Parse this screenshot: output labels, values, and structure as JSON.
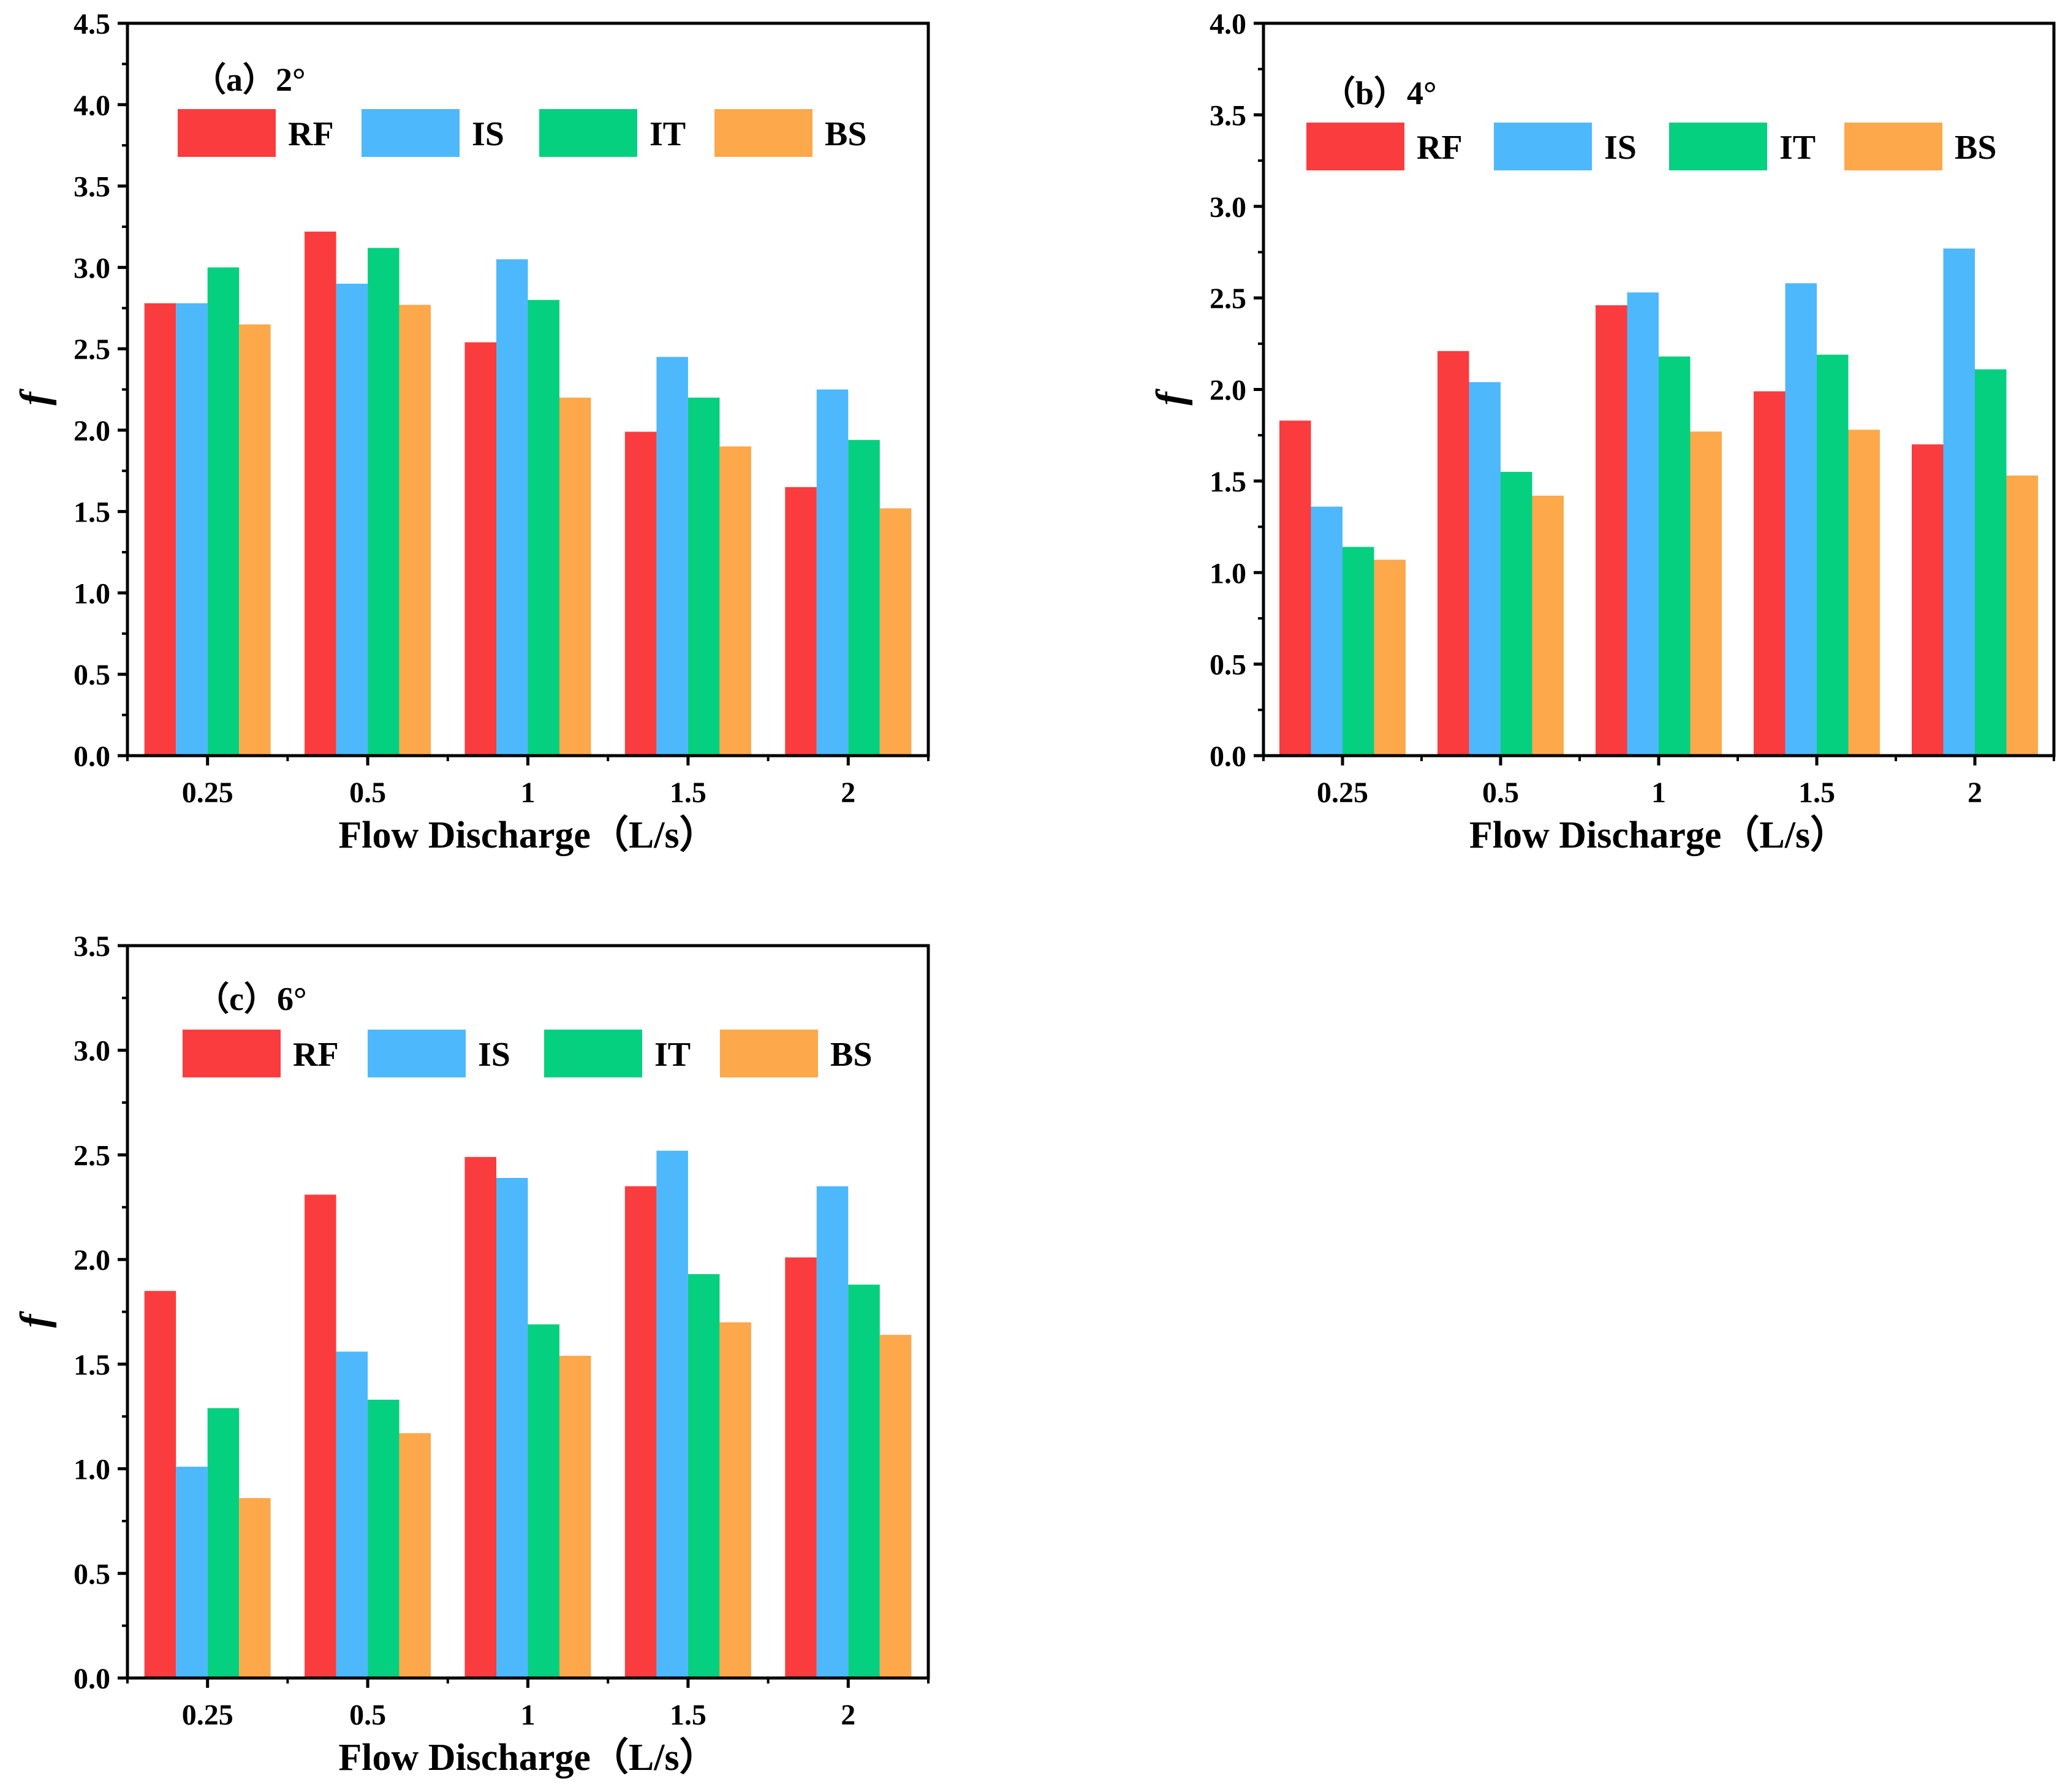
{
  "colors": {
    "RF": "#fa3c3e",
    "IS": "#4db8fc",
    "IT": "#05d07f",
    "BS": "#fca84b",
    "axis": "#000000"
  },
  "chart_data": [
    {
      "type": "bar",
      "title": "（a）2°",
      "xlabel": "Flow Discharge（L/s）",
      "ylabel": "f",
      "ylim": [
        0,
        4.5
      ],
      "yticks": [
        "0.0",
        "0.5",
        "1.0",
        "1.5",
        "2.0",
        "2.5",
        "3.0",
        "3.5",
        "4.0",
        "4.5"
      ],
      "categories": [
        "0.25",
        "0.5",
        "1",
        "1.5",
        "2"
      ],
      "legend_position": "top",
      "grid": false,
      "series": [
        {
          "name": "RF",
          "values": [
            2.78,
            3.22,
            2.54,
            1.99,
            1.65
          ]
        },
        {
          "name": "IS",
          "values": [
            2.78,
            2.9,
            3.05,
            2.45,
            2.25
          ]
        },
        {
          "name": "IT",
          "values": [
            3.0,
            3.12,
            2.8,
            2.2,
            1.94
          ]
        },
        {
          "name": "BS",
          "values": [
            2.65,
            2.77,
            2.2,
            1.9,
            1.52
          ]
        }
      ]
    },
    {
      "type": "bar",
      "title": "（b）4°",
      "xlabel": "Flow Discharge（L/s）",
      "ylabel": "f",
      "ylim": [
        0,
        4.0
      ],
      "yticks": [
        "0.0",
        "0.5",
        "1.0",
        "1.5",
        "2.0",
        "2.5",
        "3.0",
        "3.5",
        "4.0"
      ],
      "categories": [
        "0.25",
        "0.5",
        "1",
        "1.5",
        "2"
      ],
      "legend_position": "top",
      "grid": false,
      "series": [
        {
          "name": "RF",
          "values": [
            1.83,
            2.21,
            2.46,
            1.99,
            1.7
          ]
        },
        {
          "name": "IS",
          "values": [
            1.36,
            2.04,
            2.53,
            2.58,
            2.77
          ]
        },
        {
          "name": "IT",
          "values": [
            1.14,
            1.55,
            2.18,
            2.19,
            2.11
          ]
        },
        {
          "name": "BS",
          "values": [
            1.07,
            1.42,
            1.77,
            1.78,
            1.53
          ]
        }
      ]
    },
    {
      "type": "bar",
      "title": "（c）6°",
      "xlabel": "Flow Discharge（L/s）",
      "ylabel": "f",
      "ylim": [
        0,
        3.5
      ],
      "yticks": [
        "0.0",
        "0.5",
        "1.0",
        "1.5",
        "2.0",
        "2.5",
        "3.0",
        "3.5"
      ],
      "categories": [
        "0.25",
        "0.5",
        "1",
        "1.5",
        "2"
      ],
      "legend_position": "top",
      "grid": false,
      "series": [
        {
          "name": "RF",
          "values": [
            1.85,
            2.31,
            2.49,
            2.35,
            2.01
          ]
        },
        {
          "name": "IS",
          "values": [
            1.01,
            1.56,
            2.39,
            2.52,
            2.35
          ]
        },
        {
          "name": "IT",
          "values": [
            1.29,
            1.33,
            1.69,
            1.93,
            1.88
          ]
        },
        {
          "name": "BS",
          "values": [
            0.86,
            1.17,
            1.54,
            1.7,
            1.64
          ]
        }
      ]
    }
  ]
}
